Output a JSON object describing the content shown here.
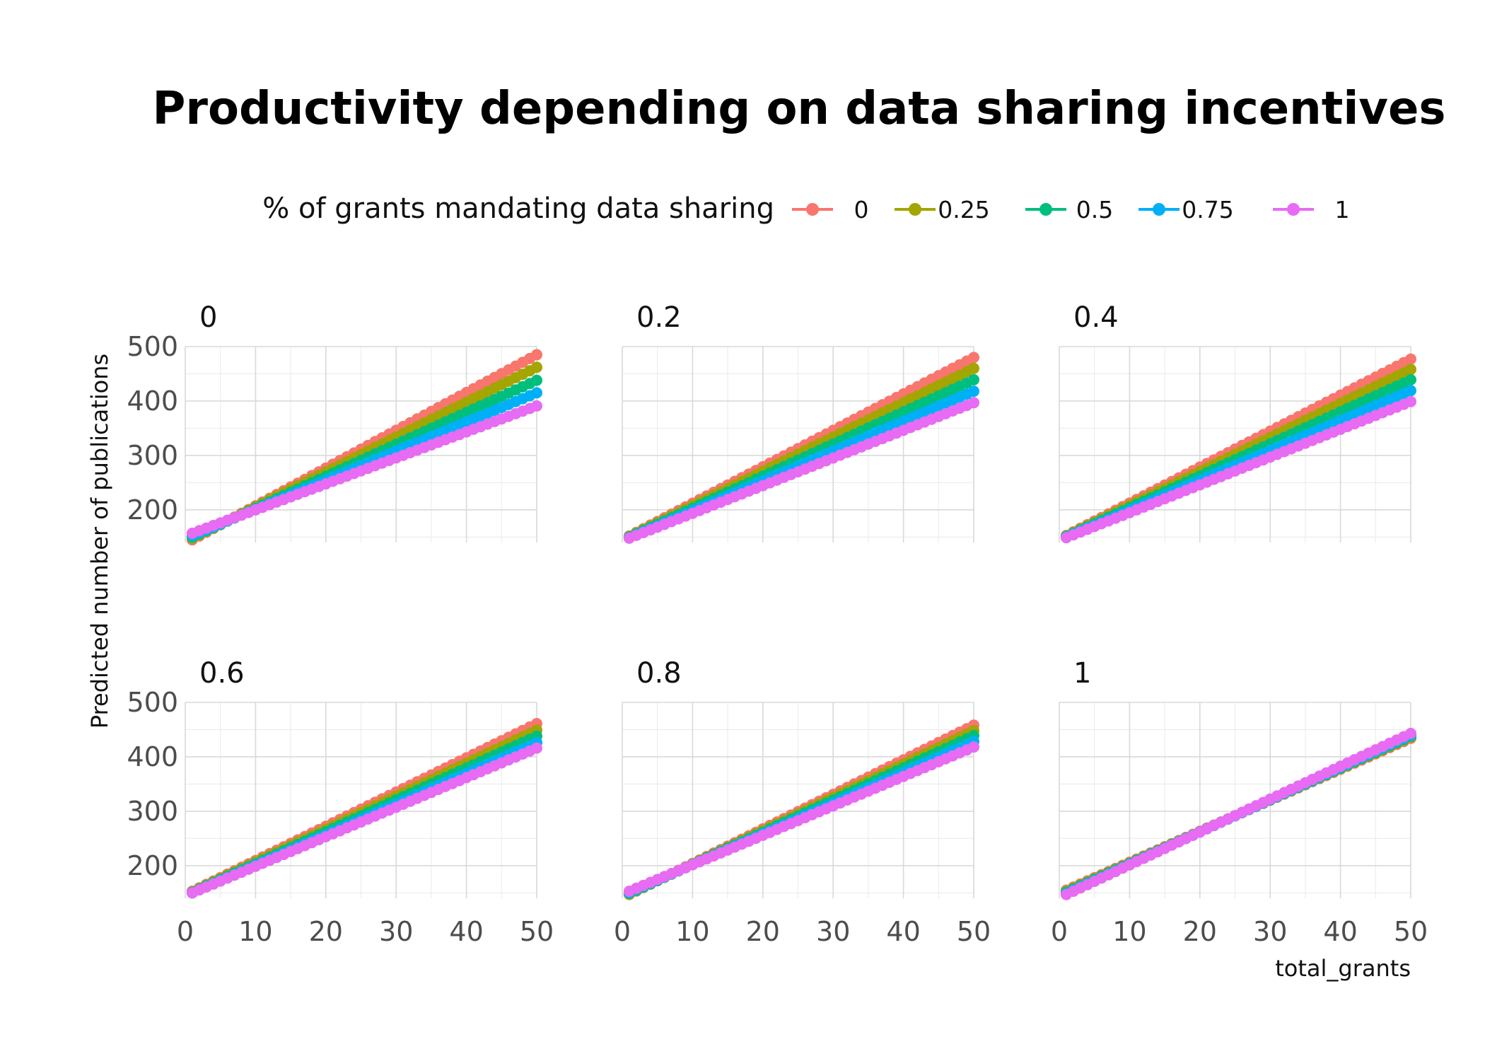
{
  "chart_data": {
    "type": "line",
    "title": "Productivity depending on data sharing incentives",
    "xlabel": "total_grants",
    "ylabel": "Predicted number of publications",
    "legend": {
      "title": "% of grants mandating data sharing",
      "position": "top"
    },
    "xlim": [
      0,
      50
    ],
    "ylim": [
      140,
      500
    ],
    "x_ticks": [
      0,
      10,
      20,
      30,
      40,
      50
    ],
    "y_ticks": [
      200,
      300,
      400,
      500
    ],
    "x_tick_labels": [
      "0",
      "10",
      "20",
      "30",
      "40",
      "50"
    ],
    "y_tick_labels": [
      "200",
      "300",
      "400",
      "500"
    ],
    "grid": true,
    "x_points": [
      1,
      2,
      3,
      4,
      5,
      6,
      7,
      8,
      9,
      10,
      11,
      12,
      13,
      14,
      15,
      16,
      17,
      18,
      19,
      20,
      21,
      22,
      23,
      24,
      25,
      26,
      27,
      28,
      29,
      30,
      31,
      32,
      33,
      34,
      35,
      36,
      37,
      38,
      39,
      40,
      41,
      42,
      43,
      44,
      45,
      46,
      47,
      48,
      49,
      50
    ],
    "series_colors": [
      "#F8766D",
      "#A3A500",
      "#00BF7D",
      "#00B0F6",
      "#E76BF3"
    ],
    "panels": [
      {
        "label": "0",
        "series": [
          {
            "name": "0",
            "start": 145,
            "end": 485
          },
          {
            "name": "0.25",
            "start": 148,
            "end": 462
          },
          {
            "name": "0.5",
            "start": 150,
            "end": 438
          },
          {
            "name": "0.75",
            "start": 153,
            "end": 415
          },
          {
            "name": "1",
            "start": 157,
            "end": 391
          }
        ]
      },
      {
        "label": "0.2",
        "series": [
          {
            "name": "0",
            "start": 152,
            "end": 480
          },
          {
            "name": "0.25",
            "start": 151,
            "end": 460
          },
          {
            "name": "0.5",
            "start": 150,
            "end": 439
          },
          {
            "name": "0.75",
            "start": 149,
            "end": 418
          },
          {
            "name": "1",
            "start": 148,
            "end": 397
          }
        ]
      },
      {
        "label": "0.4",
        "series": [
          {
            "name": "0",
            "start": 153,
            "end": 477
          },
          {
            "name": "0.25",
            "start": 152,
            "end": 458
          },
          {
            "name": "0.5",
            "start": 151,
            "end": 439
          },
          {
            "name": "0.75",
            "start": 150,
            "end": 419
          },
          {
            "name": "1",
            "start": 149,
            "end": 399
          }
        ]
      },
      {
        "label": "0.6",
        "series": [
          {
            "name": "0",
            "start": 153,
            "end": 461
          },
          {
            "name": "0.25",
            "start": 152,
            "end": 449
          },
          {
            "name": "0.5",
            "start": 151,
            "end": 438
          },
          {
            "name": "0.75",
            "start": 150,
            "end": 426
          },
          {
            "name": "1",
            "start": 150,
            "end": 416
          }
        ]
      },
      {
        "label": "0.8",
        "series": [
          {
            "name": "0",
            "start": 147,
            "end": 458
          },
          {
            "name": "0.25",
            "start": 148,
            "end": 448
          },
          {
            "name": "0.5",
            "start": 149,
            "end": 439
          },
          {
            "name": "0.75",
            "start": 151,
            "end": 428
          },
          {
            "name": "1",
            "start": 153,
            "end": 418
          }
        ]
      },
      {
        "label": "1",
        "series": [
          {
            "name": "0",
            "start": 155,
            "end": 434
          },
          {
            "name": "0.25",
            "start": 153,
            "end": 436
          },
          {
            "name": "0.5",
            "start": 151,
            "end": 438
          },
          {
            "name": "0.75",
            "start": 149,
            "end": 440
          },
          {
            "name": "1",
            "start": 147,
            "end": 443
          }
        ]
      }
    ]
  }
}
